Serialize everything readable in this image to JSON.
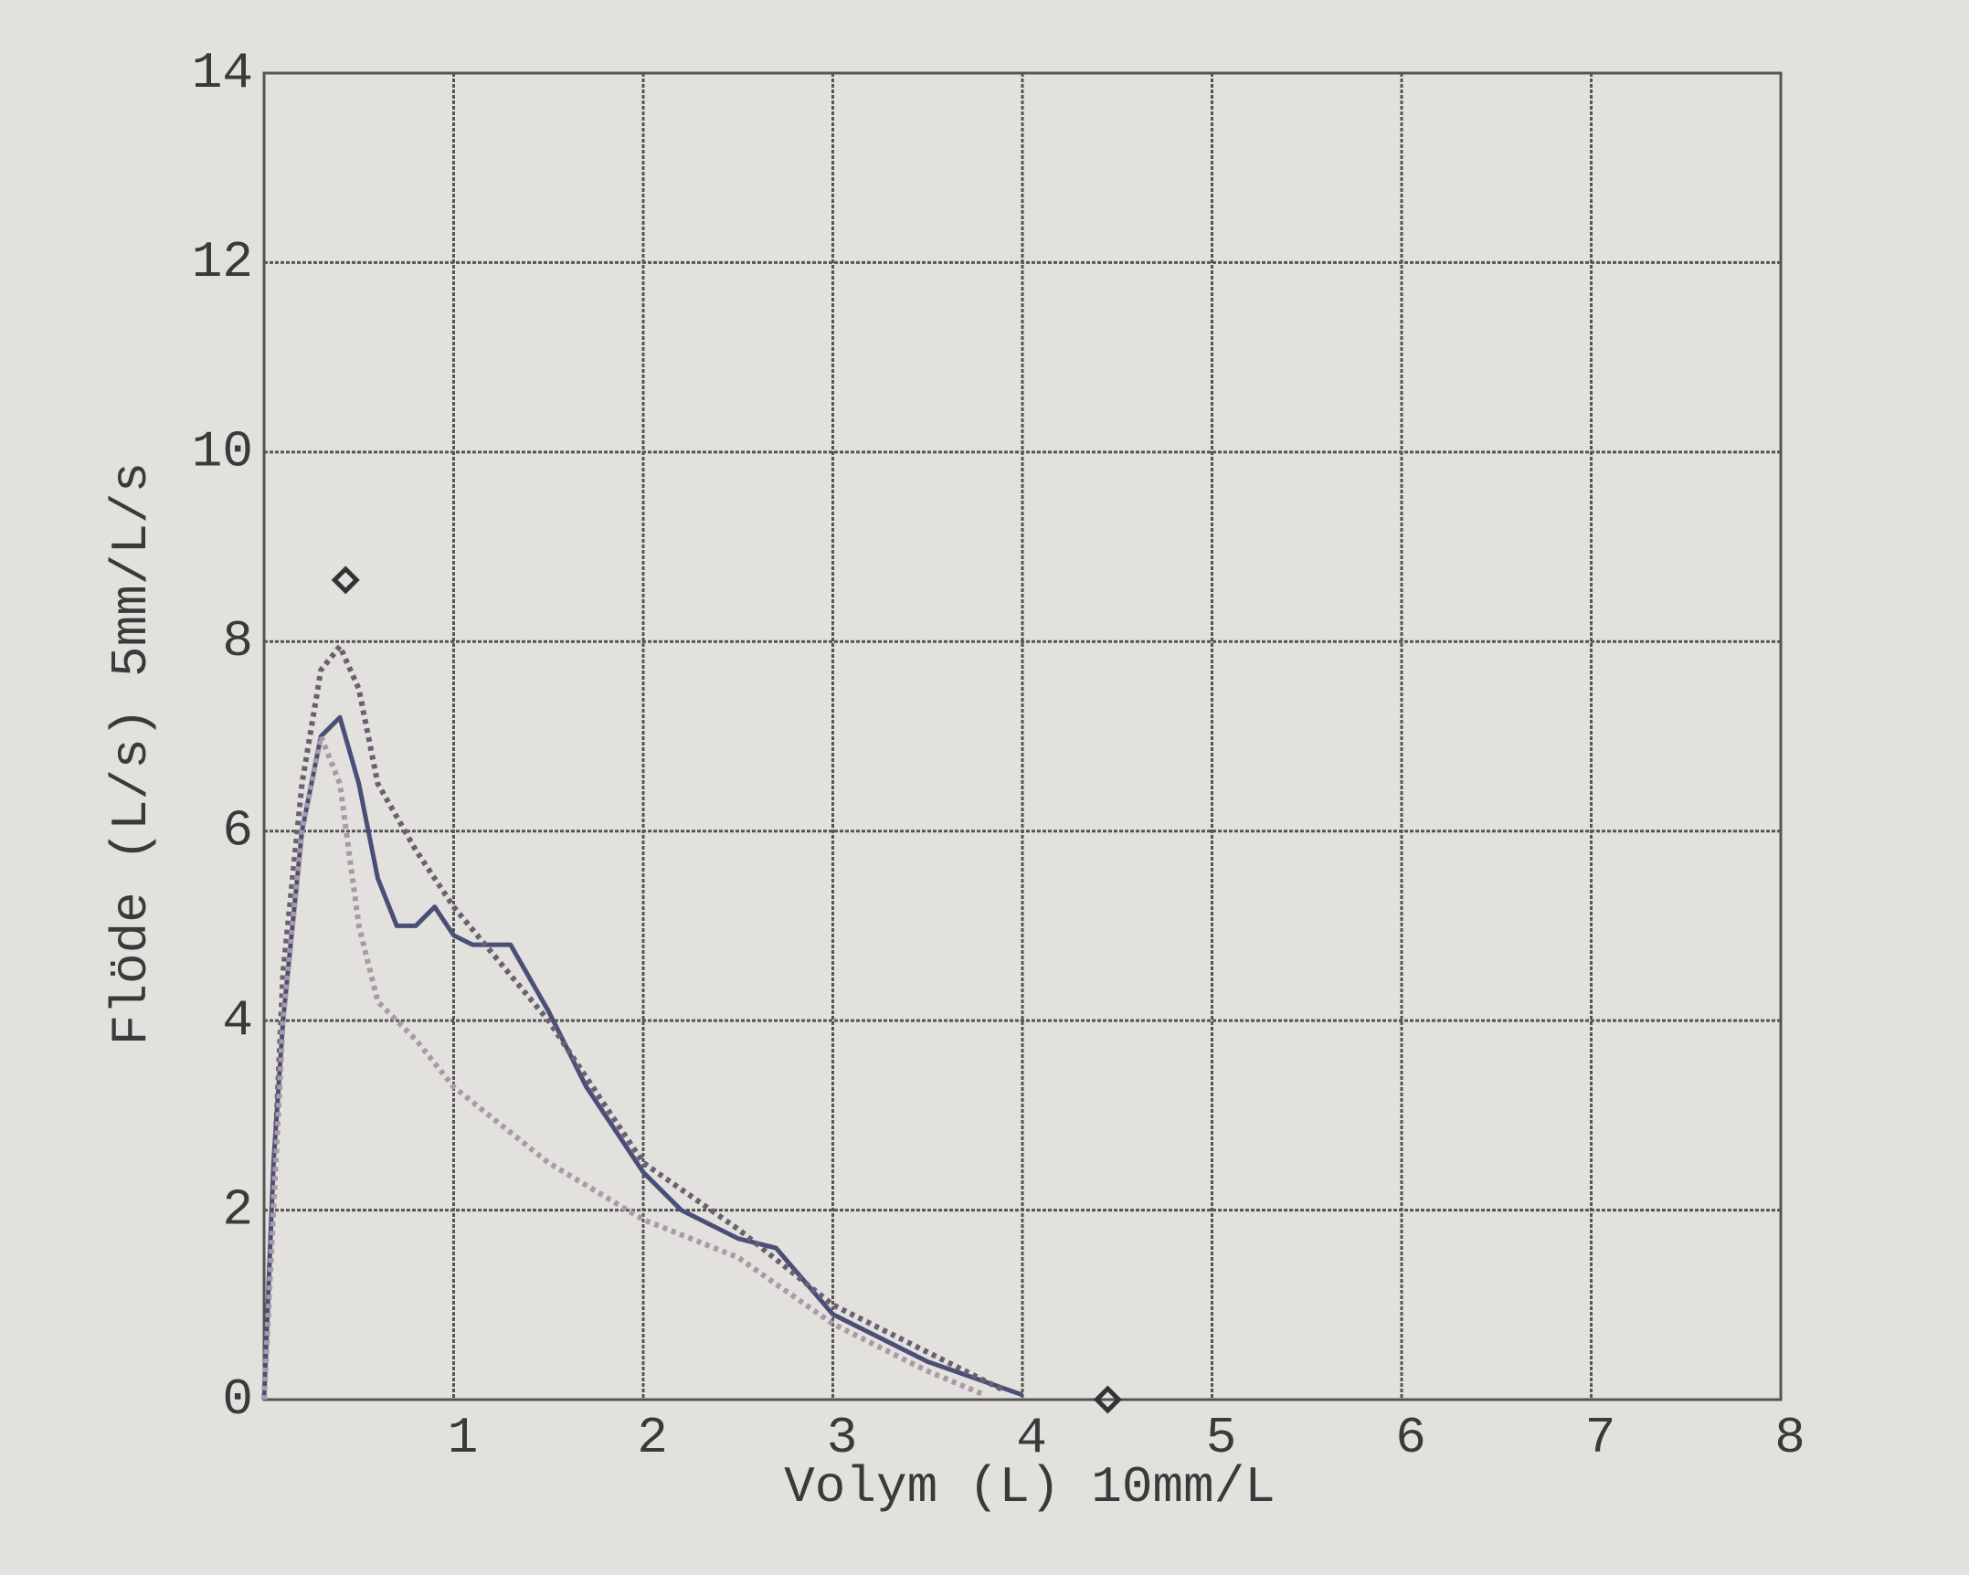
{
  "chart_data": {
    "type": "line",
    "xlabel": "Volym (L) 10mm/L",
    "ylabel": "Flöde (L/s)  5mm/L/s",
    "xlim": [
      0,
      8
    ],
    "xticks": [
      1,
      2,
      3,
      4,
      5,
      6,
      7,
      8
    ],
    "ylim": [
      0,
      14
    ],
    "yticks": [
      0,
      2,
      4,
      6,
      8,
      10,
      12,
      14
    ],
    "grid": true,
    "series": [
      {
        "color": "#4a4f78",
        "style": "solid",
        "x": [
          0,
          0.05,
          0.1,
          0.2,
          0.3,
          0.4,
          0.5,
          0.6,
          0.7,
          0.8,
          0.9,
          1.0,
          1.1,
          1.3,
          1.5,
          1.7,
          2.0,
          2.2,
          2.5,
          2.7,
          3.0,
          3.5,
          4.0
        ],
        "values": [
          0,
          2.5,
          4,
          6,
          7,
          7.2,
          6.5,
          5.5,
          5.0,
          5.0,
          5.2,
          4.9,
          4.8,
          4.8,
          4.1,
          3.3,
          2.4,
          2.0,
          1.7,
          1.6,
          0.9,
          0.4,
          0.05
        ]
      },
      {
        "color": "#6a6070",
        "style": "dotted",
        "x": [
          0,
          0.1,
          0.2,
          0.3,
          0.4,
          0.5,
          0.6,
          0.8,
          1.0,
          1.5,
          2.0,
          2.5,
          3.0,
          3.5,
          3.9
        ],
        "values": [
          0,
          4.5,
          6.5,
          7.7,
          7.95,
          7.5,
          6.5,
          5.8,
          5.2,
          4.0,
          2.5,
          1.8,
          1.0,
          0.5,
          0.1
        ]
      },
      {
        "color": "#a99aa8",
        "style": "dotted",
        "x": [
          0,
          0.1,
          0.2,
          0.3,
          0.4,
          0.5,
          0.6,
          0.8,
          1.0,
          1.5,
          2.0,
          2.5,
          3.0,
          3.5,
          3.8
        ],
        "values": [
          0,
          4,
          6,
          7,
          6.5,
          5,
          4.2,
          3.8,
          3.3,
          2.5,
          1.9,
          1.5,
          0.8,
          0.3,
          0.05
        ]
      }
    ],
    "markers": {
      "type": "scatter",
      "color": "#333333",
      "x": [
        0.43,
        4.45
      ],
      "values": [
        8.65,
        0
      ]
    }
  }
}
